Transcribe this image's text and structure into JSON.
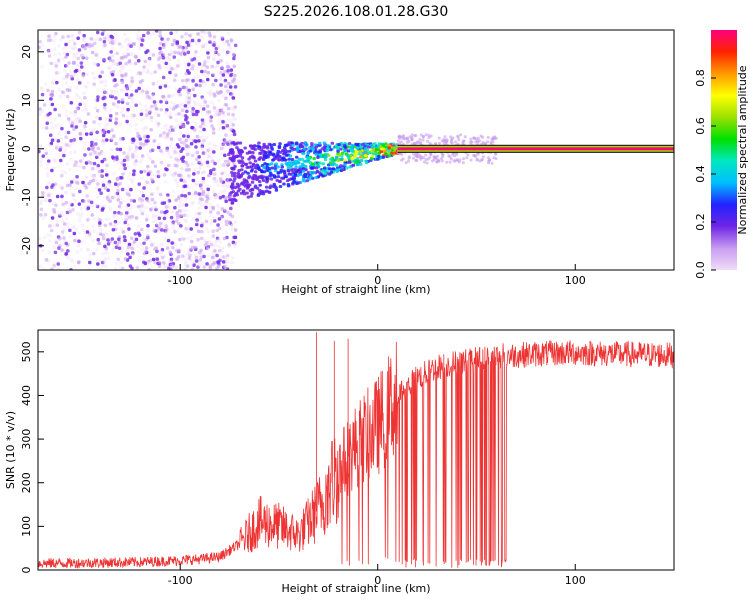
{
  "title": "S225.2026.108.01.28.G30",
  "chart_data": [
    {
      "type": "heatmap",
      "title": "S225.2026.108.01.28.G30",
      "xlabel": "Height of straight line (km)",
      "ylabel": "Frequency (Hz)",
      "xlim": [
        -172,
        150
      ],
      "ylim": [
        -25,
        24.5
      ],
      "xticks": [
        -100,
        0,
        100
      ],
      "yticks": [
        -20,
        -10,
        0,
        10,
        20
      ],
      "colorbar": {
        "label": "Normalized spectral amplitude",
        "range": [
          0,
          1
        ],
        "ticks": [
          "0.0",
          "0.2",
          "0.4",
          "0.6",
          "0.8"
        ],
        "tick_values": [
          0.0,
          0.2,
          0.4,
          0.6,
          0.8
        ],
        "colors": [
          "#f0dcf8",
          "#c89cf0",
          "#6f25e6",
          "#2222ff",
          "#00bfff",
          "#00e8c0",
          "#00e000",
          "#9be000",
          "#ffff00",
          "#ff9900",
          "#ff2200",
          "#ff007f"
        ]
      },
      "description_series": [
        {
          "name": "noise scatter",
          "x_range": [
            -172,
            -75
          ],
          "y_range": [
            -25,
            24.5
          ],
          "amplitude": [
            0.0,
            0.2
          ]
        },
        {
          "name": "converging signal",
          "x_range": [
            -75,
            10
          ],
          "center_frequency_start": -5,
          "center_frequency_end": 0,
          "amplitude": [
            0.2,
            0.9
          ]
        },
        {
          "name": "steady line",
          "x_range": [
            10,
            150
          ],
          "center_frequency": 0,
          "amplitude": [
            0.9,
            1.0
          ]
        }
      ]
    },
    {
      "type": "line",
      "xlabel": "Height of straight line (km)",
      "ylabel": "SNR (10 * v/v)",
      "xlim": [
        -172,
        150
      ],
      "ylim": [
        0,
        550
      ],
      "xticks": [
        -100,
        0,
        100
      ],
      "yticks": [
        0,
        100,
        200,
        300,
        400,
        500
      ],
      "color": "#ee3333",
      "envelope": {
        "x": [
          -172,
          -120,
          -100,
          -90,
          -80,
          -70,
          -60,
          -50,
          -40,
          -30,
          -20,
          -10,
          0,
          10,
          20,
          30,
          40,
          60,
          80,
          100,
          120,
          150
        ],
        "snr": [
          15,
          18,
          22,
          25,
          30,
          60,
          110,
          100,
          80,
          140,
          230,
          290,
          330,
          400,
          440,
          465,
          475,
          490,
          495,
          498,
          495,
          492
        ]
      },
      "dropout_range": [
        8,
        66
      ],
      "spikes": [
        {
          "x": -31,
          "snr": 545
        },
        {
          "x": -22,
          "snr": 525
        },
        {
          "x": -15,
          "snr": 530
        }
      ]
    }
  ]
}
